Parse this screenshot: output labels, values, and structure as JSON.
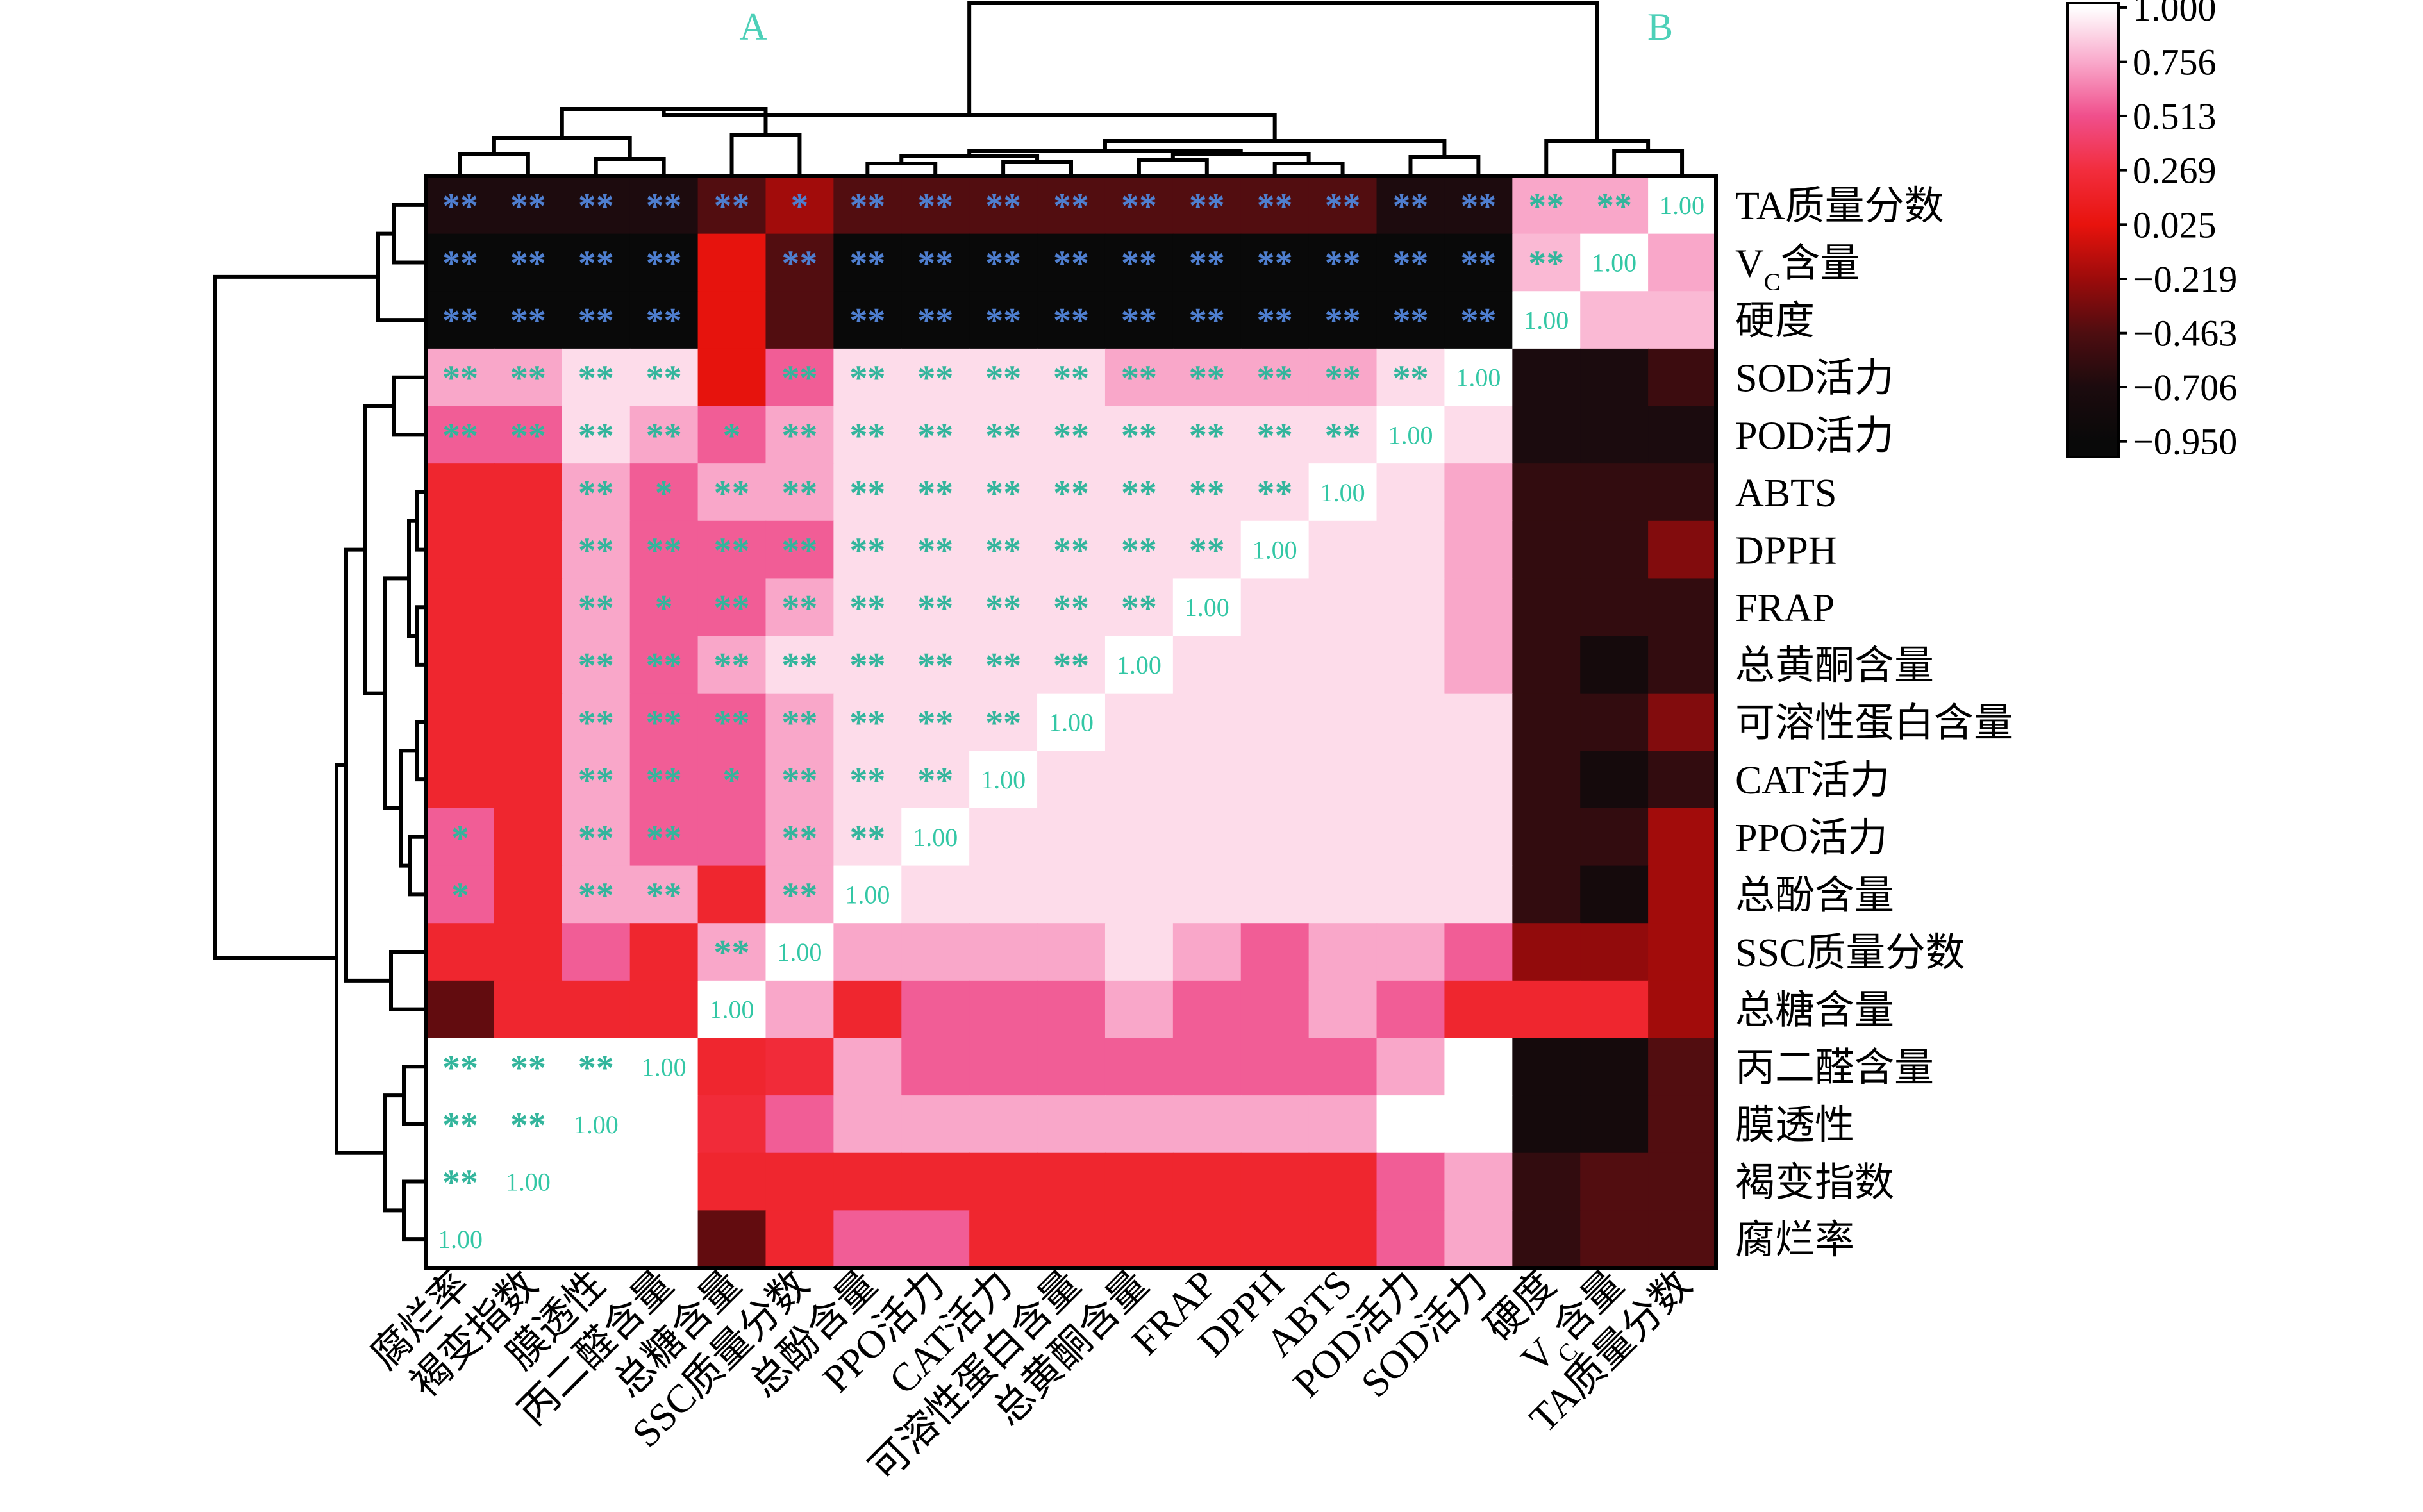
{
  "chart_data": {
    "type": "heatmap",
    "title": "",
    "legend_placement": "top-right",
    "cluster_labels": [
      "A",
      "B"
    ],
    "colorbar": {
      "ticks": [
        "1.000",
        "0.756",
        "0.513",
        "0.269",
        "0.025",
        "−0.219",
        "−0.463",
        "−0.706",
        "−0.950"
      ],
      "colors": [
        "#ffffff",
        "#f9a9cb",
        "#f04f8c",
        "#f22d3d",
        "#e8130d",
        "#9c0b0b",
        "#4e0d10",
        "#1c0b0e",
        "#090909"
      ]
    },
    "row_labels": [
      "TA质量分数",
      "V<sub>C</sub>含量",
      "硬度",
      "SOD活力",
      "POD活力",
      "ABTS",
      "DPPH",
      "FRAP",
      "总黄酮含量",
      "可溶性蛋白含量",
      "CAT活力",
      "PPO活力",
      "总酚含量",
      "SSC质量分数",
      "总糖含量",
      "丙二醛含量",
      "膜透性",
      "褐变指数",
      "腐烂率"
    ],
    "col_labels": [
      "腐烂率",
      "褐变指数",
      "膜透性",
      "丙二醛含量",
      "总糖含量",
      "SSC质量分数",
      "总酚含量",
      "PPO活力",
      "CAT活力",
      "可溶性蛋白含量",
      "总黄酮含量",
      "FRAP",
      "DPPH",
      "ABTS",
      "POD活力",
      "SOD活力",
      "硬度",
      "V<sub>C</sub>含量",
      "TA质量分数"
    ],
    "values": [
      [
        -0.7,
        -0.7,
        -0.7,
        -0.7,
        -0.45,
        -0.2,
        -0.45,
        -0.45,
        -0.45,
        -0.45,
        -0.45,
        -0.45,
        -0.45,
        -0.45,
        -0.7,
        -0.7,
        0.75,
        0.75,
        1.0
      ],
      [
        -0.95,
        -0.95,
        -0.95,
        -0.95,
        0.02,
        -0.45,
        -0.95,
        -0.95,
        -0.95,
        -0.95,
        -0.95,
        -0.95,
        -0.95,
        -0.95,
        -0.95,
        -0.95,
        0.8,
        1.0,
        0.75
      ],
      [
        -0.95,
        -0.95,
        -0.95,
        -0.95,
        0.02,
        -0.45,
        -0.95,
        -0.95,
        -0.95,
        -0.95,
        -0.95,
        -0.95,
        -0.95,
        -0.95,
        -0.95,
        -0.95,
        1.0,
        0.8,
        0.8
      ],
      [
        0.75,
        0.75,
        0.9,
        0.9,
        0.02,
        0.55,
        0.9,
        0.9,
        0.9,
        0.9,
        0.75,
        0.75,
        0.75,
        0.75,
        0.9,
        1.0,
        -0.72,
        -0.72,
        -0.55
      ],
      [
        0.55,
        0.55,
        0.9,
        0.75,
        0.55,
        0.75,
        0.9,
        0.9,
        0.9,
        0.9,
        0.9,
        0.9,
        0.9,
        0.9,
        1.0,
        0.9,
        -0.72,
        -0.72,
        -0.72
      ],
      [
        0.2,
        0.2,
        0.75,
        0.55,
        0.75,
        0.75,
        0.9,
        0.9,
        0.9,
        0.9,
        0.9,
        0.9,
        0.9,
        1.0,
        0.9,
        0.75,
        -0.6,
        -0.6,
        -0.6
      ],
      [
        0.2,
        0.2,
        0.75,
        0.55,
        0.55,
        0.55,
        0.9,
        0.9,
        0.9,
        0.9,
        0.9,
        0.9,
        1.0,
        0.9,
        0.9,
        0.75,
        -0.6,
        -0.6,
        -0.3
      ],
      [
        0.2,
        0.2,
        0.75,
        0.55,
        0.55,
        0.75,
        0.9,
        0.9,
        0.9,
        0.9,
        0.9,
        1.0,
        0.9,
        0.9,
        0.9,
        0.75,
        -0.6,
        -0.6,
        -0.6
      ],
      [
        0.2,
        0.2,
        0.75,
        0.55,
        0.75,
        0.9,
        0.9,
        0.9,
        0.9,
        0.9,
        1.0,
        0.9,
        0.9,
        0.9,
        0.9,
        0.75,
        -0.6,
        -0.8,
        -0.6
      ],
      [
        0.2,
        0.2,
        0.75,
        0.55,
        0.55,
        0.75,
        0.9,
        0.9,
        0.9,
        1.0,
        0.9,
        0.9,
        0.9,
        0.9,
        0.9,
        0.9,
        -0.6,
        -0.6,
        -0.3
      ],
      [
        0.2,
        0.2,
        0.75,
        0.55,
        0.55,
        0.75,
        0.9,
        0.9,
        1.0,
        0.9,
        0.9,
        0.9,
        0.9,
        0.9,
        0.9,
        0.9,
        -0.6,
        -0.8,
        -0.6
      ],
      [
        0.55,
        0.2,
        0.75,
        0.55,
        0.55,
        0.75,
        0.9,
        1.0,
        0.9,
        0.9,
        0.9,
        0.9,
        0.9,
        0.9,
        0.9,
        0.9,
        -0.6,
        -0.6,
        -0.2
      ],
      [
        0.55,
        0.2,
        0.75,
        0.75,
        0.2,
        0.75,
        1.0,
        0.9,
        0.9,
        0.9,
        0.9,
        0.9,
        0.9,
        0.9,
        0.9,
        0.9,
        -0.6,
        -0.8,
        -0.2
      ],
      [
        0.2,
        0.2,
        0.55,
        0.2,
        0.75,
        1.0,
        0.75,
        0.75,
        0.75,
        0.75,
        0.9,
        0.75,
        0.55,
        0.75,
        0.75,
        0.55,
        -0.25,
        -0.25,
        -0.2
      ],
      [
        -0.4,
        0.2,
        0.2,
        0.2,
        1.0,
        0.75,
        0.2,
        0.55,
        0.55,
        0.55,
        0.75,
        0.55,
        0.55,
        0.75,
        0.55,
        0.2,
        0.2,
        0.2,
        -0.2
      ],
      [
        1.0,
        1.0,
        1.0,
        1.0,
        0.2,
        0.25,
        0.75,
        0.55,
        0.55,
        0.55,
        0.55,
        0.55,
        0.55,
        0.55,
        0.75,
        1.0,
        -0.8,
        -0.8,
        -0.45
      ],
      [
        1.0,
        1.0,
        1.0,
        1.0,
        0.25,
        0.55,
        0.75,
        0.75,
        0.75,
        0.75,
        0.75,
        0.75,
        0.75,
        0.75,
        1.0,
        1.0,
        -0.8,
        -0.8,
        -0.45
      ],
      [
        1.0,
        1.0,
        1.0,
        1.0,
        0.2,
        0.2,
        0.2,
        0.2,
        0.2,
        0.2,
        0.2,
        0.2,
        0.2,
        0.2,
        0.55,
        0.75,
        -0.6,
        -0.45,
        -0.45
      ],
      [
        1.0,
        1.0,
        1.0,
        1.0,
        -0.4,
        0.2,
        0.55,
        0.55,
        0.2,
        0.2,
        0.2,
        0.2,
        0.2,
        0.2,
        0.55,
        0.75,
        -0.6,
        -0.45,
        -0.45
      ]
    ],
    "significance": [
      [
        "**",
        "**",
        "**",
        "**",
        "**",
        "*",
        "**",
        "**",
        "**",
        "**",
        "**",
        "**",
        "**",
        "**",
        "**",
        "**",
        "**",
        "**",
        "1.00"
      ],
      [
        "**",
        "**",
        "**",
        "**",
        "",
        "**",
        "**",
        "**",
        "**",
        "**",
        "**",
        "**",
        "**",
        "**",
        "**",
        "**",
        "**",
        "1.00",
        ""
      ],
      [
        "**",
        "**",
        "**",
        "**",
        "",
        "",
        "**",
        "**",
        "**",
        "**",
        "**",
        "**",
        "**",
        "**",
        "**",
        "**",
        "1.00",
        "",
        ""
      ],
      [
        "**",
        "**",
        "**",
        "**",
        "",
        "**",
        "**",
        "**",
        "**",
        "**",
        "**",
        "**",
        "**",
        "**",
        "**",
        "1.00",
        "",
        "",
        ""
      ],
      [
        "**",
        "**",
        "**",
        "**",
        "*",
        "**",
        "**",
        "**",
        "**",
        "**",
        "**",
        "**",
        "**",
        "**",
        "1.00",
        "",
        "",
        "",
        ""
      ],
      [
        "",
        "",
        "**",
        "*",
        "**",
        "**",
        "**",
        "**",
        "**",
        "**",
        "**",
        "**",
        "**",
        "1.00",
        "",
        "",
        "",
        "",
        ""
      ],
      [
        "",
        "",
        "**",
        "**",
        "**",
        "**",
        "**",
        "**",
        "**",
        "**",
        "**",
        "**",
        "1.00",
        "",
        "",
        "",
        "",
        "",
        ""
      ],
      [
        "",
        "",
        "**",
        "*",
        "**",
        "**",
        "**",
        "**",
        "**",
        "**",
        "**",
        "1.00",
        "",
        "",
        "",
        "",
        "",
        "",
        ""
      ],
      [
        "",
        "",
        "**",
        "**",
        "**",
        "**",
        "**",
        "**",
        "**",
        "**",
        "1.00",
        "",
        "",
        "",
        "",
        "",
        "",
        "",
        ""
      ],
      [
        "",
        "",
        "**",
        "**",
        "**",
        "**",
        "**",
        "**",
        "**",
        "1.00",
        "",
        "",
        "",
        "",
        "",
        "",
        "",
        "",
        ""
      ],
      [
        "",
        "",
        "**",
        "**",
        "*",
        "**",
        "**",
        "**",
        "1.00",
        "",
        "",
        "",
        "",
        "",
        "",
        "",
        "",
        "",
        ""
      ],
      [
        "*",
        "",
        "**",
        "**",
        "",
        "**",
        "**",
        "1.00",
        "",
        "",
        "",
        "",
        "",
        "",
        "",
        "",
        "",
        "",
        ""
      ],
      [
        "*",
        "",
        "**",
        "**",
        "",
        "**",
        "1.00",
        "",
        "",
        "",
        "",
        "",
        "",
        "",
        "",
        "",
        "",
        "",
        ""
      ],
      [
        "",
        "",
        "",
        "",
        "**",
        "1.00",
        "",
        "",
        "",
        "",
        "",
        "",
        "",
        "",
        "",
        "",
        "",
        "",
        ""
      ],
      [
        "",
        "",
        "",
        "",
        "1.00",
        "",
        "",
        "",
        "",
        "",
        "",
        "",
        "",
        "",
        "",
        "",
        "",
        "",
        ""
      ],
      [
        "**",
        "**",
        "**",
        "1.00",
        "",
        "",
        "",
        "",
        "",
        "",
        "",
        "",
        "",
        "",
        "",
        "",
        "",
        "",
        ""
      ],
      [
        "**",
        "**",
        "1.00",
        "",
        "",
        "",
        "",
        "",
        "",
        "",
        "",
        "",
        "",
        "",
        "",
        "",
        "",
        "",
        ""
      ],
      [
        "**",
        "1.00",
        "",
        "",
        "",
        "",
        "",
        "",
        "",
        "",
        "",
        "",
        "",
        "",
        "",
        "",
        "",
        "",
        ""
      ],
      [
        "1.00",
        "",
        "",
        "",
        "",
        "",
        "",
        "",
        "",
        "",
        "",
        "",
        "",
        "",
        "",
        "",
        "",
        "",
        ""
      ]
    ]
  },
  "colors": {
    "star_dark": "#4f7fd0",
    "star_light": "#33b59c",
    "diag_text": "#33c7a5",
    "cluster_label": "#4dd0b8",
    "line": "#000000"
  }
}
